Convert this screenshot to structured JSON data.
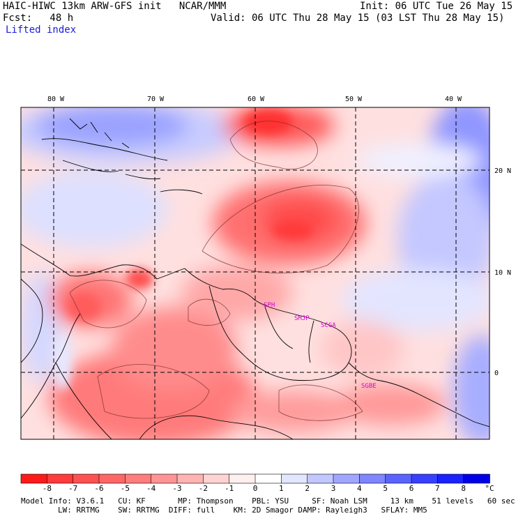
{
  "header": {
    "model_line": "HAIC-HIWC 13km ARW-GFS init   NCAR/MMM",
    "init": "Init: 06 UTC Tue 26 May 15",
    "fcst_label": "Fcst:   48 h",
    "valid": "Valid: 06 UTC Thu 28 May 15 (03 LST Thu 28 May 15)",
    "field": "Lifted index"
  },
  "map": {
    "lon_labels": [
      "80 W",
      "70 W",
      "60 W",
      "50 W",
      "40 W"
    ],
    "lat_labels": [
      "20 N",
      "10 N",
      "0"
    ],
    "stations": [
      "SPH",
      "SMJP",
      "SCGA",
      "SGBE"
    ]
  },
  "colorbar": {
    "ticks": [
      "-8",
      "-7",
      "-6",
      "-5",
      "-4",
      "-3",
      "-2",
      "-1",
      "0",
      "1",
      "2",
      "3",
      "4",
      "5",
      "6",
      "7",
      "8"
    ],
    "unit": "°C",
    "colors": [
      "#ff1a1a",
      "#ff3b3b",
      "#ff5151",
      "#ff6767",
      "#ff7d7d",
      "#ff9494",
      "#ffb3b3",
      "#ffd3d3",
      "#fff0f0",
      "#ffffff",
      "#e3e6ff",
      "#c2c7ff",
      "#a0a6ff",
      "#7f86ff",
      "#5b63ff",
      "#3840ff",
      "#1a22ff",
      "#0000e6"
    ]
  },
  "footer": {
    "line1": "Model Info: V3.6.1   CU: KF       MP: Thompson    PBL: YSU     SF: Noah LSM     13 km    51 levels   60 sec",
    "line2": "        LW: RRTMG    SW: RRTMG  DIFF: full    KM: 2D Smagor DAMP: Rayleigh3   SFLAY: MM5"
  }
}
